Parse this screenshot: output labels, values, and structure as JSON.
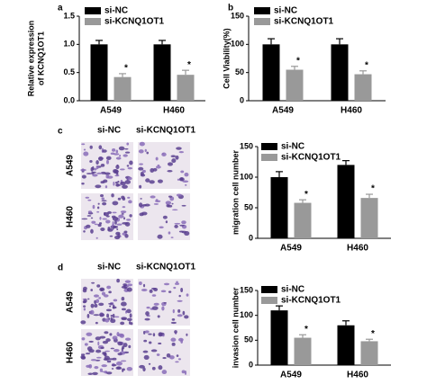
{
  "panel_labels": [
    "a",
    "b",
    "c",
    "d"
  ],
  "image_panels": [
    {
      "columns": [
        "si-NC",
        "si-KCNQ1OT1"
      ],
      "rows": [
        "A549",
        "H460"
      ]
    },
    {
      "columns": [
        "si-NC",
        "si-KCNQ1OT1"
      ],
      "rows": [
        "A549",
        "H460"
      ]
    }
  ],
  "chart_data": [
    {
      "type": "bar",
      "y_label": [
        "Relative expression",
        "of KCNQ1OT1"
      ],
      "categories": [
        "A549",
        "H460"
      ],
      "series": [
        {
          "name": "si-NC",
          "color": "#000000",
          "values": [
            1.0,
            1.0
          ],
          "errors": [
            0.07,
            0.07
          ]
        },
        {
          "name": "si-KCNQ1OT1",
          "color": "#999999",
          "values": [
            0.42,
            0.46
          ],
          "errors": [
            0.06,
            0.08
          ],
          "annotations": [
            "*",
            "*"
          ]
        }
      ],
      "ylim": [
        0,
        1.5
      ],
      "yticks": [
        {
          "value": 0,
          "label": "0.0"
        },
        {
          "value": 0.5,
          "label": "0.5"
        },
        {
          "value": 1,
          "label": "1.0"
        },
        {
          "value": 1.5,
          "label": "1.5"
        }
      ]
    },
    {
      "type": "bar",
      "y_label": [
        "Cell Viability(%)"
      ],
      "categories": [
        "A549",
        "H460"
      ],
      "series": [
        {
          "name": "si-NC",
          "color": "#000000",
          "values": [
            100,
            100
          ],
          "errors": [
            10,
            10
          ]
        },
        {
          "name": "si-KCNQ1OT1",
          "color": "#999999",
          "values": [
            55,
            47
          ],
          "errors": [
            6,
            6
          ],
          "annotations": [
            "*",
            "*"
          ]
        }
      ],
      "ylim": [
        0,
        150
      ],
      "yticks": [
        0,
        50,
        100,
        150
      ]
    },
    {
      "type": "bar",
      "y_label": [
        "migration cell number"
      ],
      "categories": [
        "A549",
        "H460"
      ],
      "series": [
        {
          "name": "si-NC",
          "color": "#000000",
          "values": [
            100,
            120
          ],
          "errors": [
            9,
            7
          ]
        },
        {
          "name": "si-KCNQ1OT1",
          "color": "#999999",
          "values": [
            58,
            66
          ],
          "errors": [
            5,
            6
          ],
          "annotations": [
            "*",
            "*"
          ]
        }
      ],
      "ylim": [
        0,
        150
      ],
      "yticks": [
        0,
        50,
        100,
        150
      ]
    },
    {
      "type": "bar",
      "y_label": [
        "invasion cell number"
      ],
      "categories": [
        "A549",
        "H460"
      ],
      "series": [
        {
          "name": "si-NC",
          "color": "#000000",
          "values": [
            110,
            80
          ],
          "errors": [
            9,
            9
          ]
        },
        {
          "name": "si-KCNQ1OT1",
          "color": "#999999",
          "values": [
            55,
            48
          ],
          "errors": [
            6,
            4
          ],
          "annotations": [
            "*",
            "*"
          ]
        }
      ],
      "ylim": [
        0,
        150
      ],
      "yticks": [
        0,
        50,
        100,
        150
      ]
    }
  ]
}
